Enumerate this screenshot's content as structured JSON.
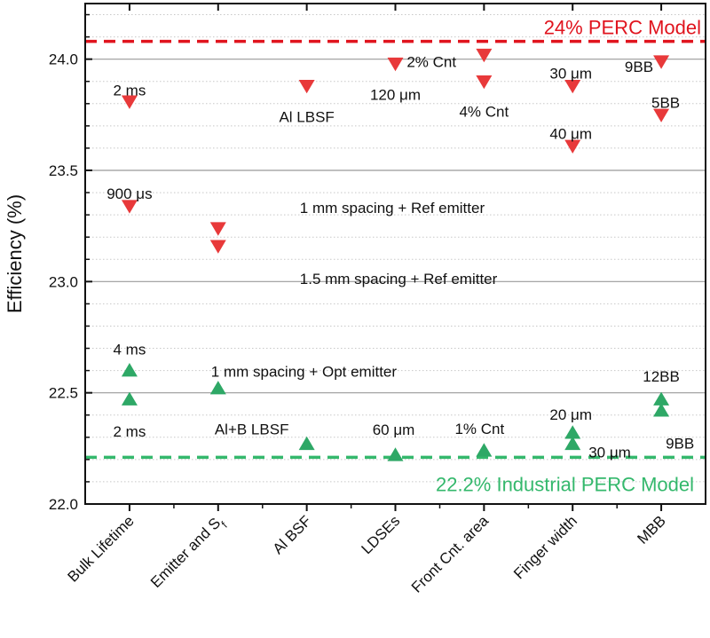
{
  "chart_data": {
    "type": "scatter",
    "ylabel": "Efficiency (%)",
    "ylim": [
      22.0,
      24.25
    ],
    "yticks": [
      "22.0",
      "22.5",
      "23.0",
      "23.5",
      "24.0"
    ],
    "ytick_values": [
      22.0,
      22.5,
      23.0,
      23.5,
      24.0
    ],
    "grid": "major solid every 0.5, minor dotted every 0.1",
    "categories": [
      {
        "label": "Bulk Lifetime",
        "sub": ""
      },
      {
        "label": "Emitter and S",
        "sub": "f"
      },
      {
        "label": "Al BSF",
        "sub": ""
      },
      {
        "label": "LDSEs",
        "sub": ""
      },
      {
        "label": "Front Cnt. area",
        "sub": ""
      },
      {
        "label": "Finger width",
        "sub": ""
      },
      {
        "label": "MBB",
        "sub": ""
      }
    ],
    "colors": {
      "red": "#e8393a",
      "green": "#2ea866",
      "ref_red": "#e0141e",
      "ref_green": "#34b86c"
    },
    "reference_lines": [
      {
        "label": "24% PERC Model",
        "value": 24.08,
        "color": "#e0141e",
        "style": "dashed"
      },
      {
        "label": "22.2% Industrial PERC Model",
        "value": 22.21,
        "color": "#34b86c",
        "style": "dashed"
      }
    ],
    "series": [
      {
        "marker": "triangle-down",
        "color": "#e8393a",
        "points": [
          {
            "cat": 0,
            "y": 23.81,
            "label": "2 ms"
          },
          {
            "cat": 0,
            "y": 23.34,
            "label": "900 μs"
          },
          {
            "cat": 1,
            "y": 23.24,
            "label": "1 mm spacing + Ref emitter"
          },
          {
            "cat": 1,
            "y": 23.16,
            "label": "1.5 mm spacing + Ref emitter"
          },
          {
            "cat": 2,
            "y": 23.88,
            "label": "Al LBSF"
          },
          {
            "cat": 3,
            "y": 23.98,
            "label": "120 μm"
          },
          {
            "cat": 4,
            "y": 24.02,
            "label": "2% Cnt"
          },
          {
            "cat": 4,
            "y": 23.9,
            "label": "4% Cnt"
          },
          {
            "cat": 5,
            "y": 23.88,
            "label": "30 μm"
          },
          {
            "cat": 5,
            "y": 23.61,
            "label": "40 μm"
          },
          {
            "cat": 6,
            "y": 23.99,
            "label": "9BB"
          },
          {
            "cat": 6,
            "y": 23.75,
            "label": "5BB"
          }
        ]
      },
      {
        "marker": "triangle-up",
        "color": "#2ea866",
        "points": [
          {
            "cat": 0,
            "y": 22.6,
            "label": "4 ms"
          },
          {
            "cat": 0,
            "y": 22.47,
            "label": "2 ms"
          },
          {
            "cat": 1,
            "y": 22.52,
            "label": "1 mm spacing + Opt emitter"
          },
          {
            "cat": 2,
            "y": 22.27,
            "label": "Al+B LBSF"
          },
          {
            "cat": 3,
            "y": 22.22,
            "label": "60 μm"
          },
          {
            "cat": 4,
            "y": 22.24,
            "label": "1% Cnt"
          },
          {
            "cat": 5,
            "y": 22.32,
            "label": "20 μm"
          },
          {
            "cat": 5,
            "y": 22.27,
            "label": "30 μm"
          },
          {
            "cat": 6,
            "y": 22.47,
            "label": "12BB"
          },
          {
            "cat": 6,
            "y": 22.42,
            "label": "9BB"
          }
        ]
      }
    ]
  }
}
